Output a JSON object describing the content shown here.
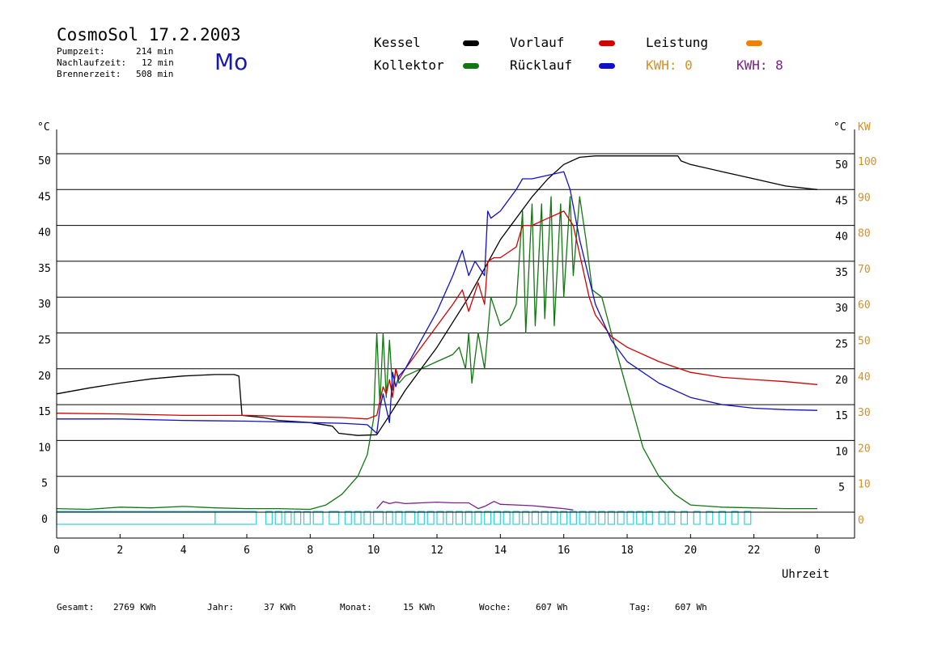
{
  "header": {
    "title": "CosmoSol 17.2.2003",
    "day": "Mo",
    "stats": [
      {
        "label": "Pumpzeit:",
        "value": "214 min"
      },
      {
        "label": "Nachlaufzeit:",
        "value": "12 min"
      },
      {
        "label": "Brennerzeit:",
        "value": "508 min"
      }
    ]
  },
  "legend": {
    "kessel": "Kessel",
    "vorlauf": "Vorlauf",
    "leistung": "Leistung",
    "kollektor": "Kollektor",
    "ruecklauf": "Rücklauf",
    "kwh1": "KWH: 0",
    "kwh2": "KWH: 8"
  },
  "colors": {
    "kessel": "#000000",
    "vorlauf": "#d40000",
    "ruecklauf": "#1010c8",
    "kollektor": "#117711",
    "leistung": "#f08000",
    "kwh1_text": "#d89020",
    "kwh2": "#7a1f8a",
    "pump": "#30d0d8",
    "right_kw_axis": "#d89020"
  },
  "footer": [
    {
      "label": "Gesamt:",
      "value": "2769 KWh"
    },
    {
      "label": "Jahr:",
      "value": "37 KWh"
    },
    {
      "label": "Monat:",
      "value": "15 KWh"
    },
    {
      "label": "Woche:",
      "value": "607 Wh"
    },
    {
      "label": "Tag:",
      "value": "607 Wh"
    }
  ],
  "chart_data": {
    "type": "line",
    "xlabel": "Uhrzeit",
    "ylabel_left": "°C",
    "ylabel_right": "°C",
    "ylabel_right2": "KW",
    "xlim": [
      0,
      24
    ],
    "ylim": [
      0,
      50
    ],
    "ylim_right_kw": [
      0,
      100
    ],
    "x_ticks": [
      "0",
      "2",
      "4",
      "6",
      "8",
      "10",
      "12",
      "14",
      "16",
      "18",
      "20",
      "22",
      "0"
    ],
    "y_ticks": [
      "0",
      "5",
      "10",
      "15",
      "20",
      "25",
      "30",
      "35",
      "40",
      "45",
      "50"
    ],
    "y_ticks_right": [
      "5",
      "10",
      "15",
      "20",
      "25",
      "30",
      "35",
      "40",
      "45",
      "50"
    ],
    "y_ticks_kw": [
      "0",
      "10",
      "20",
      "30",
      "40",
      "50",
      "60",
      "70",
      "80",
      "90",
      "100"
    ],
    "grid": true,
    "series": [
      {
        "name": "Kessel",
        "key": "kessel",
        "x": [
          0,
          1,
          2,
          3,
          4,
          5,
          5.6,
          5.75,
          5.85,
          6.5,
          7,
          8,
          8.7,
          8.9,
          9.5,
          10.1,
          10.5,
          11,
          11.5,
          12,
          12.5,
          13,
          13.5,
          14,
          14.5,
          15,
          15.5,
          16,
          16.5,
          17,
          18,
          19,
          19.6,
          19.7,
          20,
          21,
          22,
          23,
          24
        ],
        "y": [
          16.5,
          17.3,
          18,
          18.6,
          19,
          19.2,
          19.2,
          19,
          13.5,
          13.2,
          12.8,
          12.5,
          12,
          11,
          10.7,
          10.8,
          13.5,
          17,
          20,
          23,
          26.5,
          30,
          34,
          38,
          41,
          44,
          46.5,
          48.5,
          49.5,
          49.7,
          49.7,
          49.7,
          49.7,
          49,
          48.5,
          47.5,
          46.5,
          45.5,
          45
        ]
      },
      {
        "name": "Vorlauf",
        "key": "vorlauf",
        "x": [
          0,
          2,
          4,
          6,
          8,
          9,
          9.8,
          10.1,
          10.3,
          10.4,
          10.5,
          10.6,
          10.7,
          10.8,
          11,
          11.5,
          12,
          12.5,
          12.8,
          13,
          13.3,
          13.5,
          13.6,
          13.8,
          14,
          14.5,
          14.7,
          15,
          15.5,
          16,
          16.3,
          16.5,
          16.8,
          17,
          17.5,
          18,
          19,
          20,
          21,
          22,
          23,
          24
        ],
        "y": [
          13.8,
          13.7,
          13.5,
          13.5,
          13.3,
          13.2,
          13,
          13.5,
          17.5,
          16.5,
          18.5,
          16,
          20,
          18.5,
          20,
          23,
          26,
          29,
          31,
          28,
          32,
          29,
          35,
          35.5,
          35.5,
          37,
          40,
          40,
          41,
          42,
          40,
          36,
          30,
          27.5,
          24.5,
          23,
          21,
          19.5,
          18.8,
          18.5,
          18.2,
          17.8
        ]
      },
      {
        "name": "Rücklauf",
        "key": "ruecklauf",
        "x": [
          0,
          2,
          4,
          6,
          8,
          9,
          9.8,
          10.1,
          10.2,
          10.3,
          10.5,
          10.6,
          10.7,
          10.8,
          11,
          11.5,
          12,
          12.5,
          12.8,
          13,
          13.2,
          13.5,
          13.6,
          13.7,
          14,
          14.5,
          14.7,
          15,
          15.5,
          16,
          16.2,
          16.5,
          17,
          17.5,
          18,
          19,
          20,
          21,
          22,
          23,
          24
        ],
        "y": [
          13,
          13,
          12.8,
          12.7,
          12.5,
          12.4,
          12.2,
          11,
          14.5,
          16.5,
          12.5,
          19.5,
          17.5,
          19,
          20,
          24,
          28,
          33,
          36.5,
          33,
          35,
          33,
          42,
          41,
          42,
          45,
          46.5,
          46.5,
          47,
          47.5,
          45,
          38,
          29,
          24,
          21,
          18,
          16,
          15,
          14.5,
          14.3,
          14.2
        ]
      },
      {
        "name": "Kollektor",
        "key": "kollektor",
        "x": [
          0,
          1,
          2,
          3,
          4,
          5,
          6,
          7,
          8,
          8.5,
          9,
          9.5,
          9.8,
          10,
          10.1,
          10.2,
          10.3,
          10.4,
          10.5,
          10.6,
          10.7,
          10.8,
          11,
          11.5,
          12,
          12.5,
          12.7,
          12.9,
          13,
          13.1,
          13.3,
          13.5,
          13.7,
          14,
          14.3,
          14.5,
          14.7,
          14.8,
          15,
          15.1,
          15.3,
          15.4,
          15.6,
          15.7,
          15.9,
          16,
          16.2,
          16.3,
          16.5,
          16.7,
          16.9,
          17.2,
          17.5,
          18,
          18.5,
          19,
          19.5,
          20,
          21,
          22,
          23,
          24
        ],
        "y": [
          0.5,
          0.4,
          0.7,
          0.6,
          0.8,
          0.6,
          0.5,
          0.5,
          0.4,
          1,
          2.5,
          5,
          8,
          13,
          25,
          15,
          25,
          16,
          24,
          17,
          20,
          18,
          19,
          20,
          21,
          22,
          23,
          20,
          25,
          18,
          25,
          20,
          30,
          26,
          27,
          29,
          42,
          25,
          43,
          26,
          43,
          27,
          44,
          26,
          43,
          30,
          44,
          33,
          44,
          38,
          31,
          30,
          25,
          17,
          9,
          5,
          2.5,
          1,
          0.7,
          0.6,
          0.5,
          0.5
        ]
      },
      {
        "name": "KWH: 8",
        "key": "kwh2",
        "x": [
          10.1,
          10.3,
          10.5,
          10.7,
          11,
          11.5,
          12,
          12.5,
          13,
          13.3,
          13.5,
          13.8,
          14,
          14.5,
          15,
          15.5,
          16,
          16.3
        ],
        "y": [
          0.5,
          1.5,
          1.2,
          1.4,
          1.2,
          1.3,
          1.4,
          1.3,
          1.3,
          0.5,
          0.8,
          1.5,
          1.1,
          1.0,
          0.9,
          0.7,
          0.5,
          0.3
        ]
      }
    ],
    "pump_on_intervals": [
      [
        0,
        5
      ],
      [
        5.0,
        6.3
      ],
      [
        6.6,
        6.8
      ],
      [
        6.9,
        7.1
      ],
      [
        7.2,
        7.4
      ],
      [
        7.5,
        7.7
      ],
      [
        7.8,
        8.0
      ],
      [
        8.1,
        8.4
      ],
      [
        8.6,
        8.9
      ],
      [
        9.1,
        9.3
      ],
      [
        9.4,
        9.6
      ],
      [
        9.7,
        9.9
      ],
      [
        10.0,
        10.3
      ],
      [
        10.4,
        10.6
      ],
      [
        10.7,
        10.9
      ],
      [
        11.0,
        11.3
      ],
      [
        11.4,
        11.6
      ],
      [
        11.7,
        11.9
      ],
      [
        12.0,
        12.2
      ],
      [
        12.3,
        12.5
      ],
      [
        12.6,
        12.8
      ],
      [
        12.9,
        13.1
      ],
      [
        13.2,
        13.4
      ],
      [
        13.5,
        13.7
      ],
      [
        13.8,
        14.0
      ],
      [
        14.1,
        14.3
      ],
      [
        14.4,
        14.6
      ],
      [
        14.7,
        14.9
      ],
      [
        15.0,
        15.2
      ],
      [
        15.3,
        15.5
      ],
      [
        15.6,
        15.8
      ],
      [
        15.9,
        16.1
      ],
      [
        16.2,
        16.4
      ],
      [
        16.5,
        16.7
      ],
      [
        16.8,
        17.0
      ],
      [
        17.1,
        17.3
      ],
      [
        17.4,
        17.6
      ],
      [
        17.7,
        17.9
      ],
      [
        18.0,
        18.2
      ],
      [
        18.3,
        18.5
      ],
      [
        18.6,
        18.8
      ],
      [
        19.0,
        19.2
      ],
      [
        19.3,
        19.5
      ],
      [
        19.7,
        19.9
      ],
      [
        20.1,
        20.3
      ],
      [
        20.5,
        20.7
      ],
      [
        20.9,
        21.1
      ],
      [
        21.3,
        21.5
      ],
      [
        21.7,
        21.9
      ]
    ]
  }
}
